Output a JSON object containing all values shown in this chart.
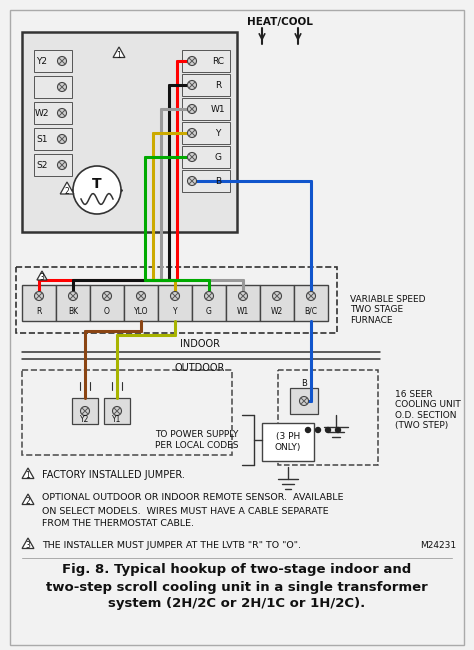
{
  "bg_color": "#f2f2f2",
  "title_line1": "Fig. 8. Typical hookup of two-stage indoor and",
  "title_line2": "two-step scroll cooling unit in a single transformer",
  "title_line3": "system (2H/2C or 2H/1C or 1H/2C).",
  "footnote1": "FACTORY INSTALLED JUMPER.",
  "footnote2a": "OPTIONAL OUTDOOR OR INDOOR REMOTE SENSOR.  AVAILABLE",
  "footnote2b": "ON SELECT MODELS.  WIRES MUST HAVE A CABLE SEPARATE",
  "footnote2c": "FROM THE THERMOSTAT CABLE.",
  "footnote3": "THE INSTALLER MUST JUMPER AT THE LVTB \"R\" TO \"O\".",
  "footnote3_ref": "M24231",
  "label_heat_cool": "HEAT/COOL",
  "label_variable_speed": "VARIABLE SPEED\nTWO STAGE\nFURNACE",
  "label_indoor": "INDOOR",
  "label_outdoor": "OUTDOOR",
  "label_16seer": "16 SEER\nCOOLING UNIT\nO.D. SECTION\n(TWO STEP)",
  "label_power": "TO POWER SUPPLY\nPER LOCAL CODES",
  "label_3ph": "(3 PH\nONLY)",
  "left_terminals": [
    "Y2",
    "W2",
    "S1",
    "S2"
  ],
  "right_terminals": [
    "RC",
    "R",
    "W1",
    "Y",
    "G",
    "B"
  ],
  "furnace_terminals": [
    "R",
    "BK",
    "O",
    "YLO",
    "Y",
    "G",
    "W1",
    "W2",
    "B/C"
  ],
  "outdoor_terminals": [
    "Y2",
    "Y1"
  ]
}
